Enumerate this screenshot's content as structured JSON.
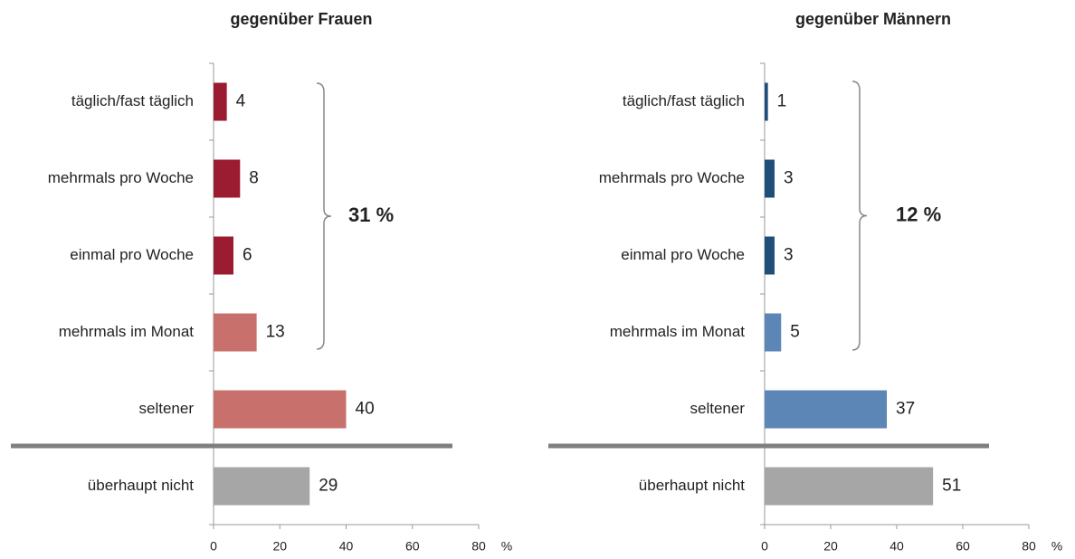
{
  "chart_data": [
    {
      "type": "bar",
      "orientation": "horizontal",
      "title": "gegenüber Frauen",
      "categories": [
        "täglich/fast täglich",
        "mehrmals pro Woche",
        "einmal pro Woche",
        "mehrmals im Monat",
        "seltener",
        "überhaupt nicht"
      ],
      "values": [
        4,
        8,
        6,
        13,
        40,
        29
      ],
      "colors": [
        "#9b1b30",
        "#9b1b30",
        "#9b1b30",
        "#c8706c",
        "#c8706c",
        "#a6a6a6"
      ],
      "xlim": [
        0,
        80
      ],
      "xticks": [
        0,
        20,
        40,
        60,
        80
      ],
      "x_label": "%",
      "annotation": "31 %"
    },
    {
      "type": "bar",
      "orientation": "horizontal",
      "title": "gegenüber Männern",
      "categories": [
        "täglich/fast täglich",
        "mehrmals pro Woche",
        "einmal pro Woche",
        "mehrmals im Monat",
        "seltener",
        "überhaupt nicht"
      ],
      "values": [
        1,
        3,
        3,
        5,
        37,
        51
      ],
      "colors": [
        "#1f4e79",
        "#1f4e79",
        "#1f4e79",
        "#5b86b5",
        "#5b86b5",
        "#a6a6a6"
      ],
      "xlim": [
        0,
        80
      ],
      "xticks": [
        0,
        20,
        40,
        60,
        80
      ],
      "x_label": "%",
      "annotation": "12 %"
    }
  ]
}
